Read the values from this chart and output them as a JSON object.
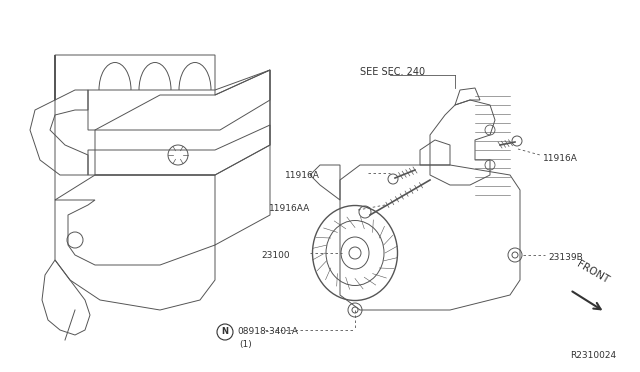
{
  "background_color": "#ffffff",
  "fig_width": 6.4,
  "fig_height": 3.72,
  "dpi": 100,
  "labels": {
    "see_sec": "SEE SEC. 240",
    "11916A_left": "11916A",
    "11916A_right": "11916A",
    "11916AA": "11916AA",
    "23100": "23100",
    "23139B": "23139B",
    "bolt_label": "08918-3401A",
    "bolt_qty": "(1)",
    "N_symbol": "N",
    "front": "FRONT",
    "diagram_id": "R2310024"
  },
  "line_color": "#555555",
  "text_color": "#333333"
}
